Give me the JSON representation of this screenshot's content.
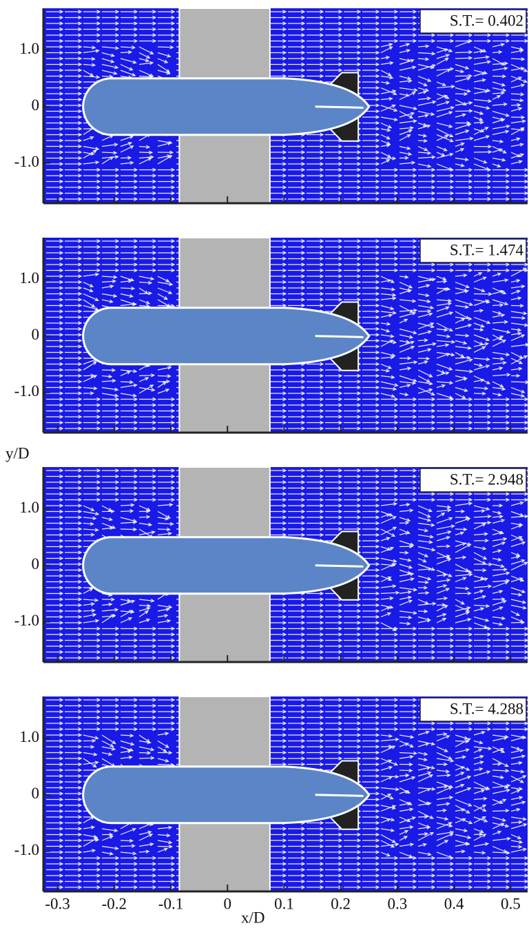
{
  "chart_data": [
    {
      "type": "vector-field",
      "annotation": "S.T.= 0.402",
      "xlim": [
        -0.325,
        0.53
      ],
      "ylim": [
        -1.71,
        1.74
      ],
      "xticks": [
        -0.3,
        -0.2,
        -0.1,
        0,
        0.1,
        0.2,
        0.3,
        0.4,
        0.5
      ],
      "yticks": [
        {
          "value": 1,
          "label": "1.0"
        },
        0,
        {
          "value": -1,
          "label": "-1.0"
        }
      ]
    },
    {
      "type": "vector-field",
      "annotation": "S.T.= 1.474",
      "xlim": [
        -0.325,
        0.53
      ],
      "ylim": [
        -1.71,
        1.74
      ],
      "xticks": [
        -0.3,
        -0.2,
        -0.1,
        0,
        0.1,
        0.2,
        0.3,
        0.4,
        0.5
      ],
      "yticks": [
        {
          "value": 1,
          "label": "1.0"
        },
        0,
        {
          "value": -1,
          "label": "-1.0"
        }
      ]
    },
    {
      "type": "vector-field",
      "annotation": "S.T.= 2.948",
      "ylabel": "y/D",
      "xlim": [
        -0.325,
        0.53
      ],
      "ylim": [
        -1.71,
        1.74
      ],
      "xticks": [
        -0.3,
        -0.2,
        -0.1,
        0,
        0.1,
        0.2,
        0.3,
        0.4,
        0.5
      ],
      "yticks": [
        {
          "value": 1,
          "label": "1.0"
        },
        0,
        {
          "value": -1,
          "label": "-1.0"
        }
      ]
    },
    {
      "type": "vector-field",
      "annotation": "S.T.= 4.288",
      "xlabel": "x/D",
      "xlim": [
        -0.325,
        0.53
      ],
      "ylim": [
        -1.71,
        1.74
      ],
      "xticks": [
        -0.3,
        -0.2,
        -0.1,
        0,
        0.1,
        0.2,
        0.3,
        0.4,
        0.5
      ],
      "yticks": [
        {
          "value": 1,
          "label": "1.0"
        },
        0,
        {
          "value": -1,
          "label": "-1.0"
        }
      ]
    }
  ]
}
